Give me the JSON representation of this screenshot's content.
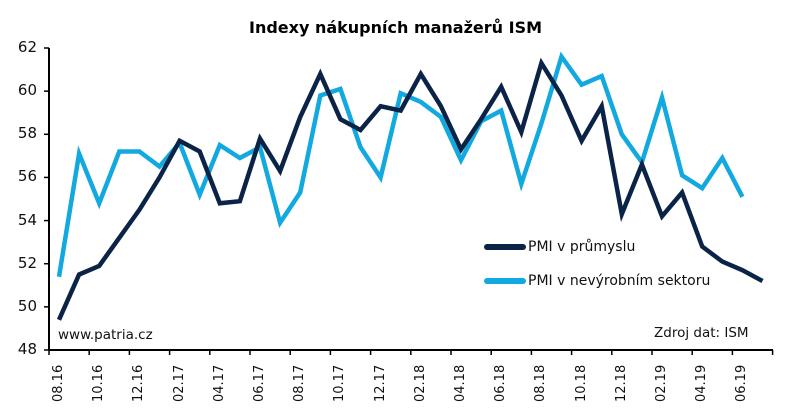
{
  "chart_data": {
    "type": "line",
    "title": "Indexy nákupních manažerů ISM",
    "xlabel": "",
    "ylabel": "",
    "ylim": [
      48,
      62
    ],
    "yticks": [
      48,
      50,
      52,
      54,
      56,
      58,
      60,
      62
    ],
    "grid": false,
    "legend_position": "inside lower right",
    "x": [
      "08.16",
      "09.16",
      "10.16",
      "11.16",
      "12.16",
      "01.17",
      "02.17",
      "03.17",
      "04.17",
      "05.17",
      "06.17",
      "07.17",
      "08.17",
      "09.17",
      "10.17",
      "11.17",
      "12.17",
      "01.18",
      "02.18",
      "03.18",
      "04.18",
      "05.18",
      "06.18",
      "07.18",
      "08.18",
      "09.18",
      "10.18",
      "11.18",
      "12.18",
      "01.19",
      "02.19",
      "03.19",
      "04.19",
      "05.19",
      "06.19",
      "07.19"
    ],
    "xtick_labels": [
      "08.16",
      "10.16",
      "12.16",
      "02.17",
      "04.17",
      "06.17",
      "08.17",
      "10.17",
      "12.17",
      "02.18",
      "04.18",
      "06.18",
      "08.18",
      "10.18",
      "12.18",
      "02.19",
      "04.19",
      "06.19"
    ],
    "series": [
      {
        "name": "PMI v průmyslu",
        "color": "#0b2347",
        "values": [
          49.4,
          51.5,
          51.9,
          53.2,
          54.5,
          56.0,
          57.7,
          57.2,
          54.8,
          54.9,
          57.8,
          56.3,
          58.8,
          60.8,
          58.7,
          58.2,
          59.3,
          59.1,
          60.8,
          59.3,
          57.3,
          58.7,
          60.2,
          58.1,
          61.3,
          59.8,
          57.7,
          59.3,
          54.3,
          56.6,
          54.2,
          55.3,
          52.8,
          52.1,
          51.7,
          51.2
        ]
      },
      {
        "name": "PMI v nevýrobním sektoru",
        "color": "#12a9e0",
        "values": [
          51.4,
          57.1,
          54.8,
          57.2,
          57.2,
          56.5,
          57.6,
          55.2,
          57.5,
          56.9,
          57.4,
          53.9,
          55.3,
          59.8,
          60.1,
          57.4,
          56.0,
          59.9,
          59.5,
          58.8,
          56.8,
          58.6,
          59.1,
          55.7,
          58.5,
          61.6,
          60.3,
          60.7,
          58.0,
          56.7,
          59.7,
          56.1,
          55.5,
          56.9,
          55.1
        ]
      }
    ],
    "annotations": [
      "www.patria.cz",
      "Zdroj dat: ISM"
    ]
  },
  "notes": {
    "website": "www.patria.cz",
    "source": "Zdroj dat: ISM"
  },
  "legend": {
    "items": [
      {
        "label": "PMI v průmyslu",
        "color": "#0b2347"
      },
      {
        "label": "PMI v nevýrobním sektoru",
        "color": "#12a9e0"
      }
    ]
  }
}
